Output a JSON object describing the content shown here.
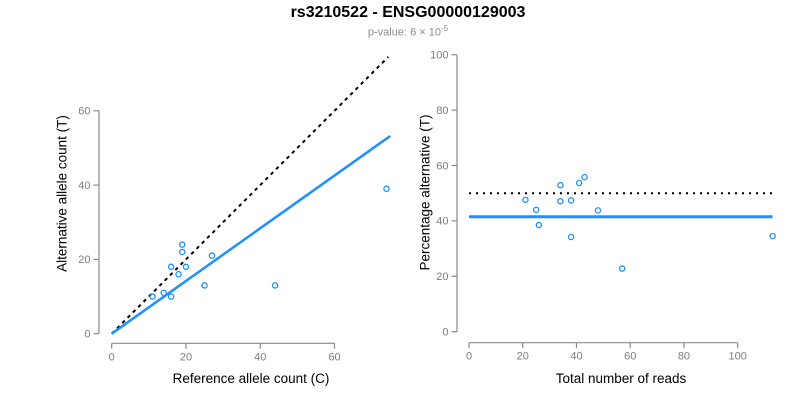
{
  "header": {
    "title": "rs3210522 - ENSG00000129003",
    "subtitle_text": "p-value: 6 × 10",
    "subtitle_exponent": "-5"
  },
  "colors": {
    "point_blue": "#1E90FF",
    "fit_line_blue": "#1E90FF",
    "reference_line_black": "#000000",
    "axis_gray": "#8a8a8a",
    "tick_label_gray": "#7d7d7d",
    "title_black": "#000000",
    "subtitle_gray": "#8a8a8a",
    "background": "#ffffff"
  },
  "chart_data": [
    {
      "id": "allele-count-scatter",
      "type": "scatter",
      "title": "",
      "xlabel": "Reference allele count (C)",
      "ylabel": "Alternative allele count (T)",
      "xlim": [
        0,
        75
      ],
      "ylim": [
        0,
        75
      ],
      "xticks": [
        0,
        20,
        40,
        60
      ],
      "yticks": [
        0,
        20,
        40,
        60
      ],
      "grid": false,
      "marker": "open-circle",
      "points": [
        [
          11,
          10
        ],
        [
          14,
          11
        ],
        [
          16,
          10
        ],
        [
          18,
          16
        ],
        [
          16,
          18
        ],
        [
          20,
          18
        ],
        [
          25,
          13
        ],
        [
          19,
          22
        ],
        [
          19,
          24
        ],
        [
          27,
          21
        ],
        [
          44,
          13
        ],
        [
          74,
          39
        ]
      ],
      "lines": [
        {
          "name": "identity-line",
          "dash": "dashed",
          "color": "#000000",
          "width": 2,
          "x1": 0,
          "y1": 0,
          "x2": 74.5,
          "y2": 74.5
        },
        {
          "name": "regression-line",
          "dash": "solid",
          "color": "#1E90FF",
          "width": 2.5,
          "x1": 0,
          "y1": 0,
          "x2": 75,
          "y2": 53.2
        }
      ]
    },
    {
      "id": "percentage-vs-reads-scatter",
      "type": "scatter",
      "title": "",
      "xlabel": "Total number of reads",
      "ylabel": "Percentage alternative (T)",
      "xlim": [
        0,
        113
      ],
      "ylim": [
        0,
        100
      ],
      "xticks": [
        0,
        20,
        40,
        60,
        80,
        100
      ],
      "yticks": [
        0,
        20,
        40,
        60,
        80,
        100
      ],
      "grid": false,
      "marker": "open-circle",
      "points": [
        [
          21,
          47.6
        ],
        [
          25,
          44.0
        ],
        [
          26,
          38.5
        ],
        [
          34,
          47.1
        ],
        [
          34,
          52.9
        ],
        [
          38,
          47.4
        ],
        [
          38,
          34.2
        ],
        [
          41,
          53.7
        ],
        [
          43,
          55.8
        ],
        [
          48,
          43.8
        ],
        [
          57,
          22.8
        ],
        [
          113,
          34.5
        ]
      ],
      "lines": [
        {
          "name": "fifty-percent-line",
          "dash": "dotted",
          "color": "#000000",
          "width": 2,
          "x1": 0,
          "y1": 50,
          "x2": 113,
          "y2": 50
        },
        {
          "name": "mean-percentage-line",
          "dash": "solid",
          "color": "#1E90FF",
          "width": 3,
          "x1": 0,
          "y1": 41.5,
          "x2": 113,
          "y2": 41.5
        }
      ]
    }
  ]
}
